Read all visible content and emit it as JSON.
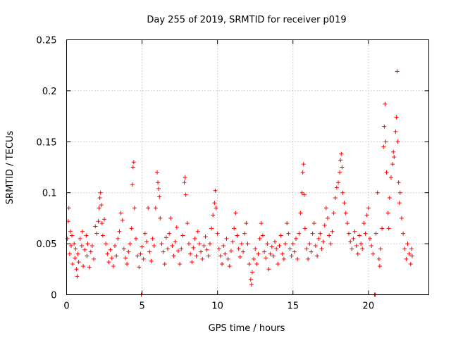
{
  "chart_data": {
    "type": "scatter",
    "title": "Day 255 of 2019, SRMTID for receiver p019",
    "xlabel": "GPS time / hours",
    "ylabel": "SRMTID / TECUs",
    "xlim": [
      0,
      24
    ],
    "ylim": [
      0,
      0.25
    ],
    "xticks": [
      0,
      5,
      10,
      15,
      20
    ],
    "xtick_labels": [
      "0",
      "5",
      "10",
      "15",
      "20"
    ],
    "yticks": [
      0,
      0.05,
      0.1,
      0.15,
      0.2,
      0.25
    ],
    "ytick_labels": [
      "0",
      "0.05",
      "0.1",
      "0.15",
      "0.2",
      "0.25"
    ],
    "grid": true,
    "marker": "+",
    "color": "#ff0000",
    "series": [
      {
        "name": "p019",
        "points": [
          [
            0.05,
            0.055
          ],
          [
            0.1,
            0.072
          ],
          [
            0.15,
            0.085
          ],
          [
            0.2,
            0.04
          ],
          [
            0.25,
            0.062
          ],
          [
            0.3,
            0.048
          ],
          [
            0.35,
            0.058
          ],
          [
            0.4,
            0.03
          ],
          [
            0.5,
            0.05
          ],
          [
            0.55,
            0.036
          ],
          [
            0.6,
            0.045
          ],
          [
            0.65,
            0.025
          ],
          [
            0.7,
            0.018
          ],
          [
            0.75,
            0.04
          ],
          [
            0.8,
            0.032
          ],
          [
            0.9,
            0.055
          ],
          [
            1.0,
            0.048
          ],
          [
            1.05,
            0.062
          ],
          [
            1.1,
            0.028
          ],
          [
            1.2,
            0.044
          ],
          [
            1.3,
            0.058
          ],
          [
            1.35,
            0.038
          ],
          [
            1.4,
            0.05
          ],
          [
            1.5,
            0.027
          ],
          [
            1.6,
            0.042
          ],
          [
            1.7,
            0.048
          ],
          [
            1.8,
            0.035
          ],
          [
            1.9,
            0.067
          ],
          [
            2.0,
            0.06
          ],
          [
            2.1,
            0.072
          ],
          [
            2.15,
            0.085
          ],
          [
            2.2,
            0.095
          ],
          [
            2.25,
            0.1
          ],
          [
            2.3,
            0.088
          ],
          [
            2.35,
            0.07
          ],
          [
            2.4,
            0.058
          ],
          [
            2.5,
            0.074
          ],
          [
            2.6,
            0.05
          ],
          [
            2.7,
            0.04
          ],
          [
            2.8,
            0.032
          ],
          [
            2.9,
            0.044
          ],
          [
            3.0,
            0.036
          ],
          [
            3.1,
            0.028
          ],
          [
            3.2,
            0.048
          ],
          [
            3.3,
            0.038
          ],
          [
            3.4,
            0.055
          ],
          [
            3.5,
            0.062
          ],
          [
            3.6,
            0.08
          ],
          [
            3.7,
            0.073
          ],
          [
            3.8,
            0.045
          ],
          [
            3.9,
            0.036
          ],
          [
            4.0,
            0.03
          ],
          [
            4.1,
            0.042
          ],
          [
            4.2,
            0.05
          ],
          [
            4.3,
            0.065
          ],
          [
            4.35,
            0.108
          ],
          [
            4.4,
            0.125
          ],
          [
            4.45,
            0.13
          ],
          [
            4.5,
            0.085
          ],
          [
            4.6,
            0.055
          ],
          [
            4.7,
            0.038
          ],
          [
            4.8,
            0.027
          ],
          [
            4.9,
            0.04
          ],
          [
            4.95,
            0.0
          ],
          [
            5.0,
            0.047
          ],
          [
            5.1,
            0.035
          ],
          [
            5.2,
            0.06
          ],
          [
            5.3,
            0.052
          ],
          [
            5.4,
            0.085
          ],
          [
            5.5,
            0.042
          ],
          [
            5.6,
            0.033
          ],
          [
            5.7,
            0.055
          ],
          [
            5.8,
            0.048
          ],
          [
            5.9,
            0.085
          ],
          [
            6.0,
            0.12
          ],
          [
            6.05,
            0.11
          ],
          [
            6.1,
            0.104
          ],
          [
            6.15,
            0.096
          ],
          [
            6.2,
            0.075
          ],
          [
            6.3,
            0.05
          ],
          [
            6.4,
            0.042
          ],
          [
            6.5,
            0.03
          ],
          [
            6.6,
            0.056
          ],
          [
            6.7,
            0.045
          ],
          [
            6.8,
            0.06
          ],
          [
            6.9,
            0.075
          ],
          [
            7.0,
            0.048
          ],
          [
            7.1,
            0.038
          ],
          [
            7.2,
            0.052
          ],
          [
            7.3,
            0.066
          ],
          [
            7.4,
            0.043
          ],
          [
            7.5,
            0.03
          ],
          [
            7.6,
            0.045
          ],
          [
            7.7,
            0.058
          ],
          [
            7.8,
            0.11
          ],
          [
            7.85,
            0.115
          ],
          [
            7.9,
            0.098
          ],
          [
            8.0,
            0.07
          ],
          [
            8.1,
            0.05
          ],
          [
            8.2,
            0.04
          ],
          [
            8.3,
            0.032
          ],
          [
            8.4,
            0.046
          ],
          [
            8.5,
            0.055
          ],
          [
            8.6,
            0.038
          ],
          [
            8.7,
            0.062
          ],
          [
            8.8,
            0.05
          ],
          [
            8.9,
            0.042
          ],
          [
            9.0,
            0.035
          ],
          [
            9.1,
            0.048
          ],
          [
            9.2,
            0.057
          ],
          [
            9.3,
            0.044
          ],
          [
            9.4,
            0.038
          ],
          [
            9.5,
            0.05
          ],
          [
            9.6,
            0.065
          ],
          [
            9.7,
            0.078
          ],
          [
            9.8,
            0.09
          ],
          [
            9.85,
            0.102
          ],
          [
            9.9,
            0.085
          ],
          [
            10.0,
            0.06
          ],
          [
            10.1,
            0.045
          ],
          [
            10.2,
            0.038
          ],
          [
            10.3,
            0.03
          ],
          [
            10.4,
            0.048
          ],
          [
            10.5,
            0.04
          ],
          [
            10.6,
            0.055
          ],
          [
            10.7,
            0.035
          ],
          [
            10.8,
            0.028
          ],
          [
            10.9,
            0.043
          ],
          [
            11.0,
            0.052
          ],
          [
            11.1,
            0.065
          ],
          [
            11.2,
            0.08
          ],
          [
            11.3,
            0.058
          ],
          [
            11.4,
            0.045
          ],
          [
            11.5,
            0.037
          ],
          [
            11.6,
            0.05
          ],
          [
            11.7,
            0.042
          ],
          [
            11.8,
            0.06
          ],
          [
            11.9,
            0.07
          ],
          [
            12.0,
            0.05
          ],
          [
            12.1,
            0.03
          ],
          [
            12.2,
            0.015
          ],
          [
            12.25,
            0.01
          ],
          [
            12.3,
            0.022
          ],
          [
            12.4,
            0.035
          ],
          [
            12.5,
            0.045
          ],
          [
            12.6,
            0.03
          ],
          [
            12.7,
            0.04
          ],
          [
            12.8,
            0.055
          ],
          [
            12.9,
            0.07
          ],
          [
            13.0,
            0.058
          ],
          [
            13.1,
            0.042
          ],
          [
            13.2,
            0.036
          ],
          [
            13.3,
            0.05
          ],
          [
            13.4,
            0.025
          ],
          [
            13.5,
            0.04
          ],
          [
            13.6,
            0.047
          ],
          [
            13.7,
            0.038
          ],
          [
            13.8,
            0.052
          ],
          [
            13.9,
            0.045
          ],
          [
            14.0,
            0.03
          ],
          [
            14.1,
            0.048
          ],
          [
            14.2,
            0.058
          ],
          [
            14.3,
            0.04
          ],
          [
            14.4,
            0.035
          ],
          [
            14.5,
            0.05
          ],
          [
            14.6,
            0.07
          ],
          [
            14.7,
            0.06
          ],
          [
            14.8,
            0.045
          ],
          [
            14.9,
            0.038
          ],
          [
            15.0,
            0.05
          ],
          [
            15.1,
            0.042
          ],
          [
            15.2,
            0.055
          ],
          [
            15.3,
            0.035
          ],
          [
            15.4,
            0.06
          ],
          [
            15.5,
            0.08
          ],
          [
            15.6,
            0.1
          ],
          [
            15.65,
            0.12
          ],
          [
            15.7,
            0.128
          ],
          [
            15.75,
            0.098
          ],
          [
            15.8,
            0.065
          ],
          [
            15.9,
            0.045
          ],
          [
            16.0,
            0.035
          ],
          [
            16.1,
            0.05
          ],
          [
            16.2,
            0.042
          ],
          [
            16.3,
            0.06
          ],
          [
            16.4,
            0.07
          ],
          [
            16.5,
            0.048
          ],
          [
            16.6,
            0.038
          ],
          [
            16.7,
            0.055
          ],
          [
            16.8,
            0.06
          ],
          [
            16.9,
            0.045
          ],
          [
            17.0,
            0.052
          ],
          [
            17.1,
            0.068
          ],
          [
            17.2,
            0.085
          ],
          [
            17.3,
            0.075
          ],
          [
            17.4,
            0.058
          ],
          [
            17.5,
            0.05
          ],
          [
            17.6,
            0.062
          ],
          [
            17.7,
            0.08
          ],
          [
            17.8,
            0.095
          ],
          [
            17.9,
            0.105
          ],
          [
            18.0,
            0.11
          ],
          [
            18.1,
            0.12
          ],
          [
            18.15,
            0.132
          ],
          [
            18.2,
            0.138
          ],
          [
            18.25,
            0.125
          ],
          [
            18.3,
            0.1
          ],
          [
            18.4,
            0.09
          ],
          [
            18.5,
            0.08
          ],
          [
            18.6,
            0.07
          ],
          [
            18.7,
            0.06
          ],
          [
            18.8,
            0.052
          ],
          [
            18.9,
            0.045
          ],
          [
            19.0,
            0.055
          ],
          [
            19.1,
            0.062
          ],
          [
            19.2,
            0.048
          ],
          [
            19.3,
            0.04
          ],
          [
            19.4,
            0.058
          ],
          [
            19.5,
            0.05
          ],
          [
            19.6,
            0.045
          ],
          [
            19.7,
            0.07
          ],
          [
            19.8,
            0.06
          ],
          [
            19.9,
            0.078
          ],
          [
            20.0,
            0.085
          ],
          [
            20.1,
            0.055
          ],
          [
            20.2,
            0.048
          ],
          [
            20.3,
            0.04
          ],
          [
            20.4,
            0.0
          ],
          [
            20.45,
            0.0
          ],
          [
            20.5,
            0.06
          ],
          [
            20.6,
            0.1
          ],
          [
            20.7,
            0.035
          ],
          [
            20.75,
            0.028
          ],
          [
            20.8,
            0.045
          ],
          [
            20.9,
            0.065
          ],
          [
            21.0,
            0.145
          ],
          [
            21.05,
            0.165
          ],
          [
            21.1,
            0.187
          ],
          [
            21.15,
            0.15
          ],
          [
            21.2,
            0.12
          ],
          [
            21.3,
            0.08
          ],
          [
            21.35,
            0.065
          ],
          [
            21.4,
            0.095
          ],
          [
            21.5,
            0.115
          ],
          [
            21.6,
            0.128
          ],
          [
            21.65,
            0.14
          ],
          [
            21.7,
            0.135
          ],
          [
            21.8,
            0.16
          ],
          [
            21.85,
            0.174
          ],
          [
            21.9,
            0.219
          ],
          [
            21.95,
            0.15
          ],
          [
            22.0,
            0.11
          ],
          [
            22.05,
            0.09
          ],
          [
            22.1,
            0.1
          ],
          [
            22.2,
            0.075
          ],
          [
            22.3,
            0.06
          ],
          [
            22.4,
            0.045
          ],
          [
            22.5,
            0.035
          ],
          [
            22.6,
            0.05
          ],
          [
            22.7,
            0.04
          ],
          [
            22.8,
            0.03
          ],
          [
            22.85,
            0.045
          ],
          [
            22.9,
            0.038
          ]
        ]
      }
    ]
  }
}
